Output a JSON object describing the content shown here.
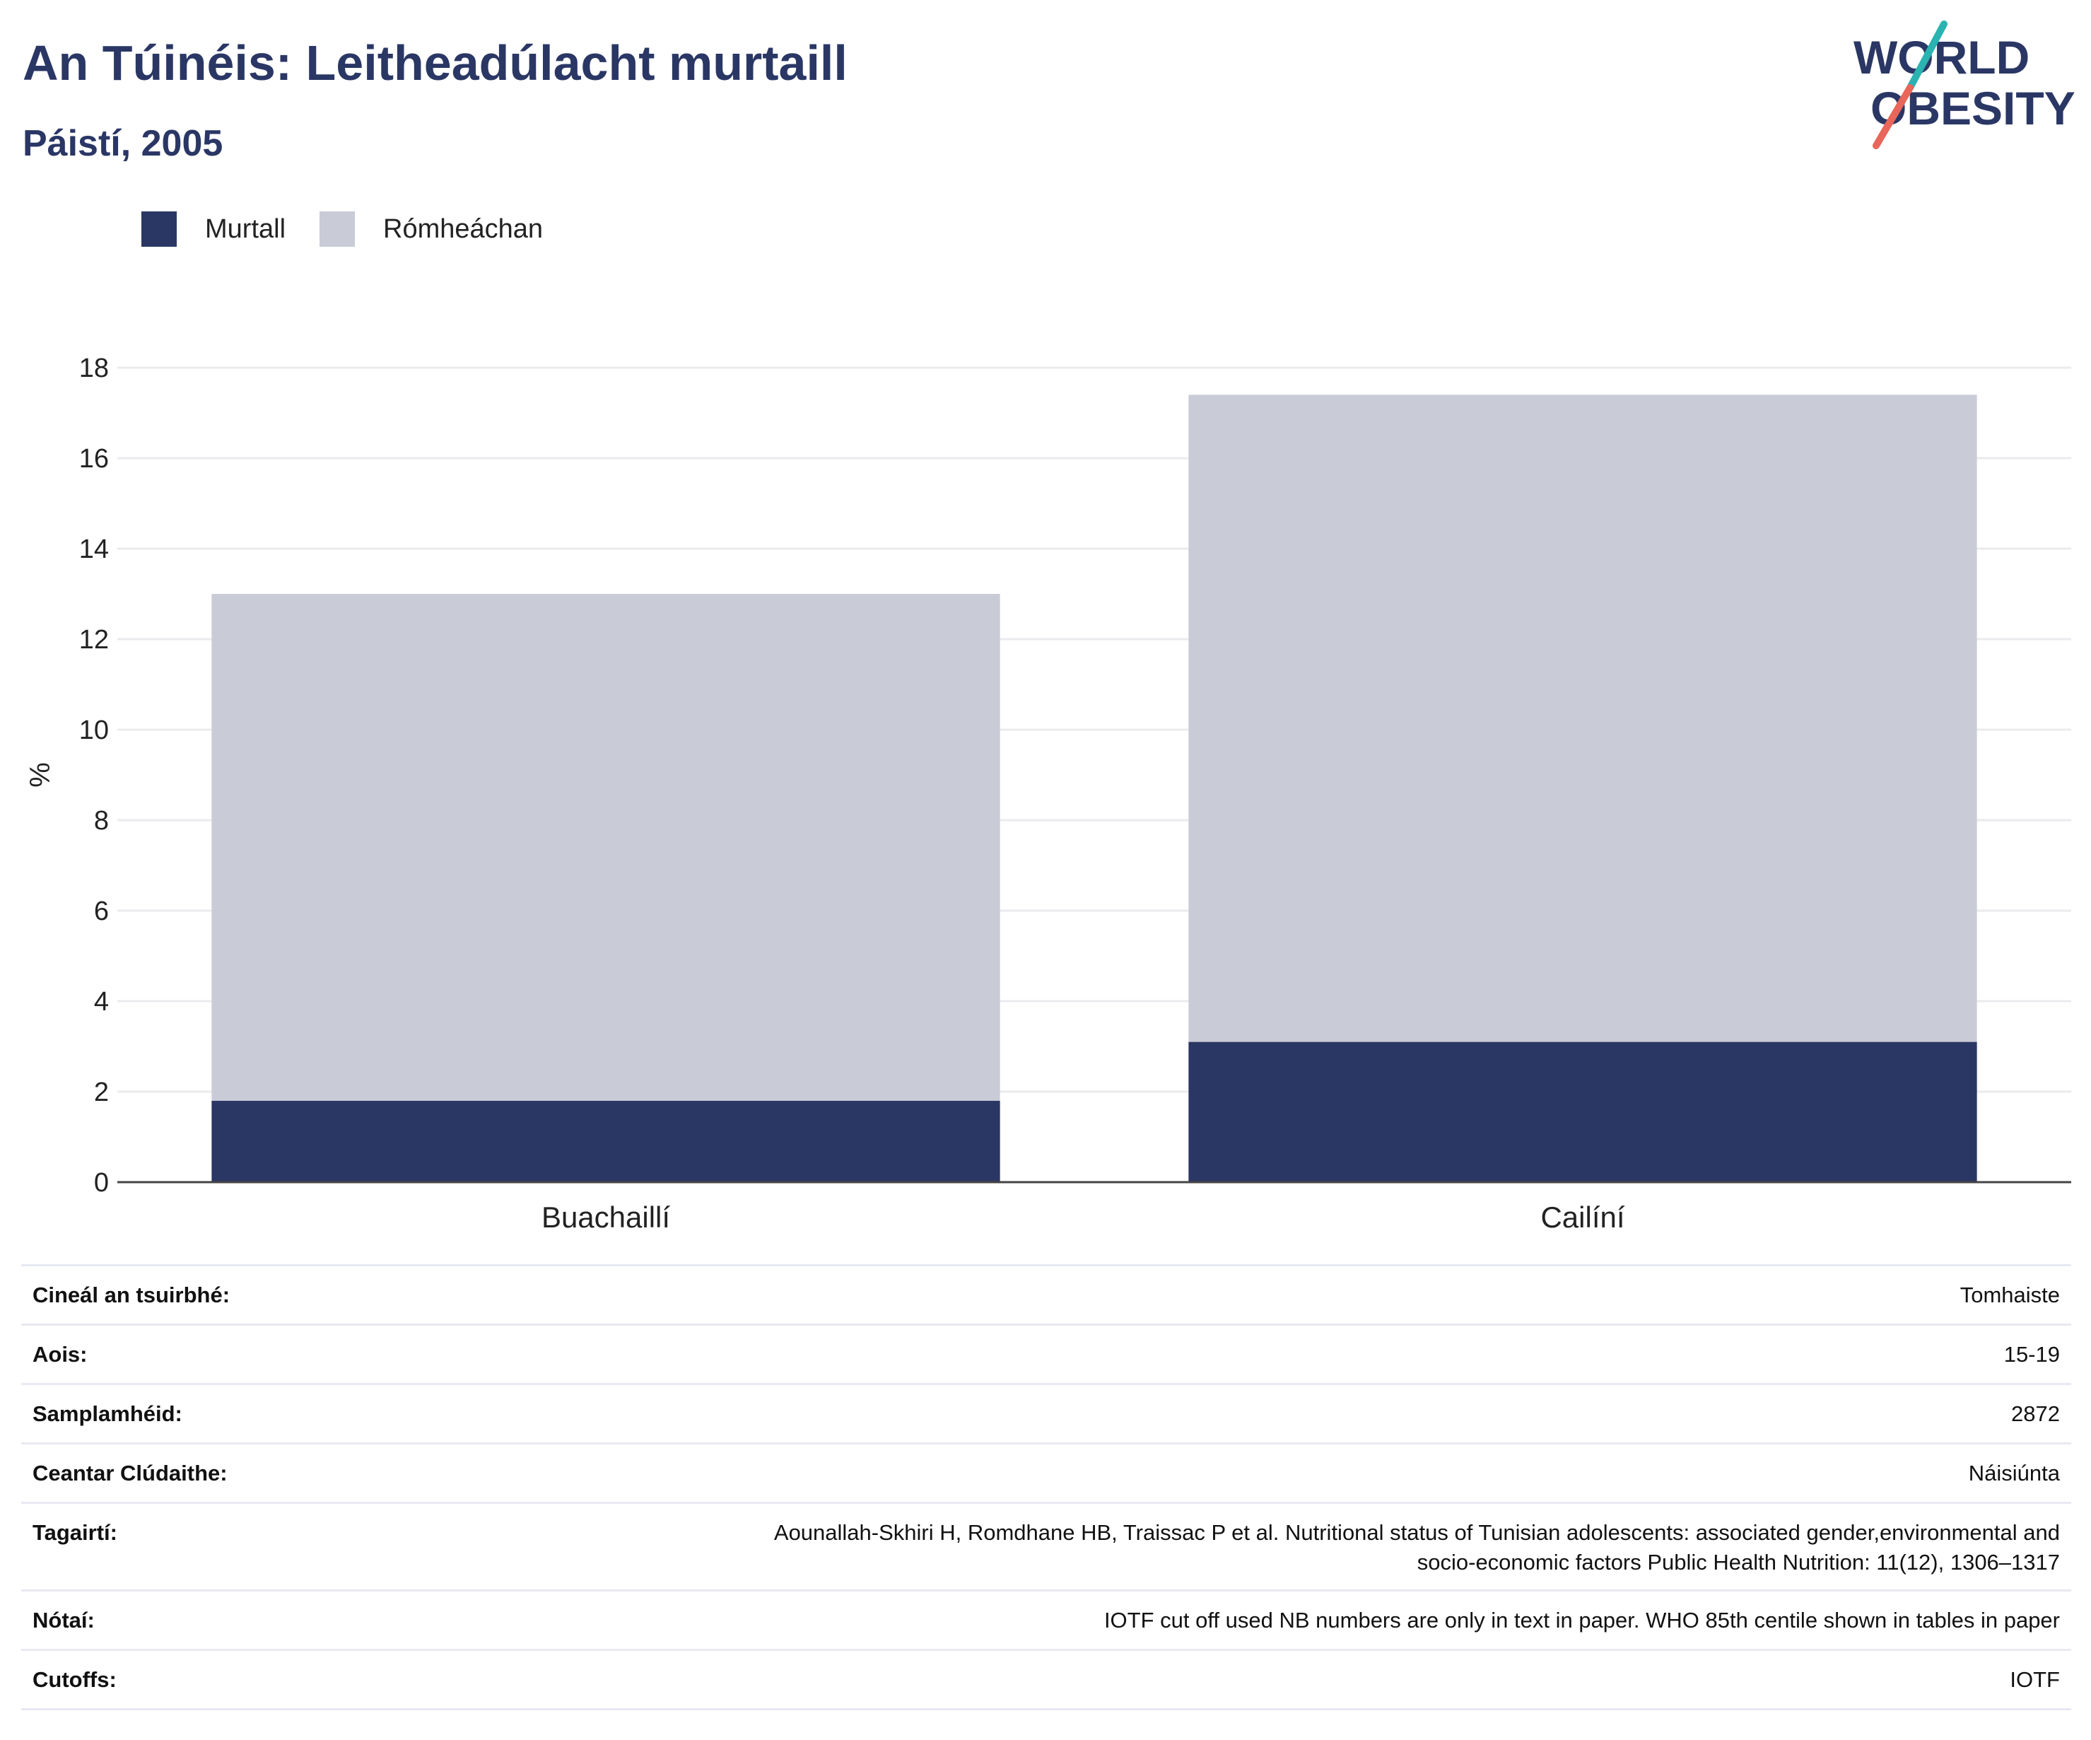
{
  "header": {
    "title": "An Túinéis: Leitheadúlacht murtaill",
    "subtitle": "Páistí, 2005"
  },
  "logo": {
    "line1": "WORLD",
    "line2": "OBESITY",
    "colors": {
      "text": "#2a3765",
      "teal": "#2ab3b1",
      "coral": "#e8665a"
    }
  },
  "legend": [
    {
      "label": "Murtall",
      "color": "#2a3765"
    },
    {
      "label": "Rómheáchan",
      "color": "#c9cbd7"
    }
  ],
  "chart_data": {
    "type": "bar",
    "stacked": true,
    "categories": [
      "Buachaillí",
      "Cailíní"
    ],
    "series": [
      {
        "name": "Murtall",
        "color": "#2a3765",
        "values": [
          1.8,
          3.1
        ]
      },
      {
        "name": "Rómheáchan",
        "color": "#c9cbd7",
        "values": [
          11.2,
          14.3
        ]
      }
    ],
    "ylabel": "%",
    "ylim": [
      0,
      18
    ],
    "yticks": [
      0,
      2,
      4,
      6,
      8,
      10,
      12,
      14,
      16,
      18
    ],
    "grid": true,
    "legend_position": "top-left"
  },
  "info": [
    {
      "key": "Cineál an tsuirbhé:",
      "value": "Tomhaiste"
    },
    {
      "key": "Aois:",
      "value": "15-19"
    },
    {
      "key": "Samplamhéid:",
      "value": "2872"
    },
    {
      "key": "Ceantar Clúdaithe:",
      "value": "Náisiúnta"
    },
    {
      "key": "Tagairtí:",
      "value_lines": [
        "Aounallah-Skhiri H, Romdhane HB, Traissac P et al. Nutritional status of Tunisian adolescents: associated gender,environmental and",
        "socio-economic factors Public Health Nutrition: 11(12), 1306–1317"
      ]
    },
    {
      "key": "Nótaí:",
      "value": "IOTF cut off used NB numbers are only in text in paper. WHO 85th centile shown in tables in paper"
    },
    {
      "key": "Cutoffs:",
      "value": "IOTF"
    }
  ]
}
